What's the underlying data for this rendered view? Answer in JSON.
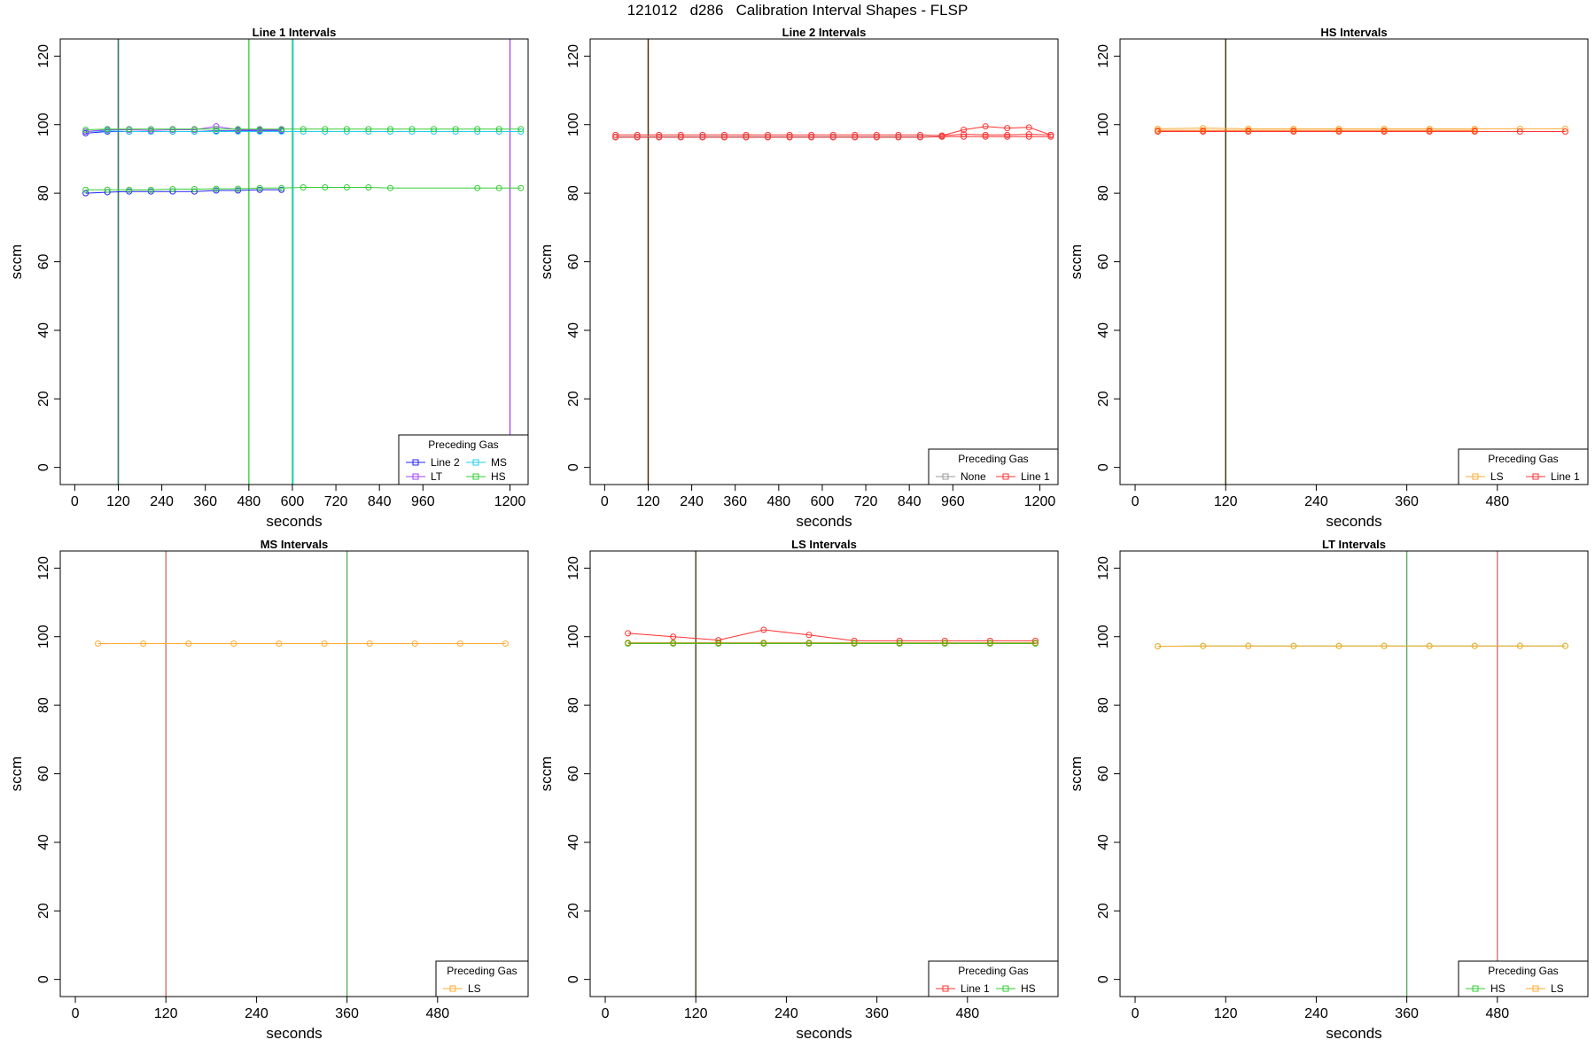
{
  "figure": {
    "title": "121012   d286   Calibration Interval Shapes - FLSP"
  },
  "chart_data": [
    {
      "type": "line",
      "title": "Line 1 Intervals",
      "xlabel": "seconds",
      "ylabel": "sccm",
      "xlim": [
        -40,
        1250
      ],
      "ylim": [
        -5,
        125
      ],
      "xticks": [
        0,
        120,
        240,
        360,
        480,
        600,
        720,
        840,
        960,
        1200
      ],
      "yticks": [
        0,
        20,
        40,
        60,
        80,
        100,
        120
      ],
      "legend": {
        "title": "Preceding Gas",
        "position": "bottom-right",
        "columns": 2
      },
      "vlines": [
        {
          "x": 120,
          "color": "#000000"
        },
        {
          "x": 120,
          "color": "#2f7f5f"
        },
        {
          "x": 480,
          "color": "#33cc33"
        },
        {
          "x": 600,
          "color": "#33cc33"
        },
        {
          "x": 602,
          "color": "#22ccee"
        },
        {
          "x": 1200,
          "color": "#a040ff"
        }
      ],
      "series": [
        {
          "name": "Line 2",
          "color": "#2222ff",
          "x": [
            30,
            90,
            150,
            210,
            270,
            330,
            390,
            450,
            510,
            570
          ],
          "y": [
            80.0,
            80.3,
            80.5,
            80.5,
            80.5,
            80.5,
            80.8,
            80.8,
            81.0,
            81.0
          ]
        },
        {
          "name": "",
          "color": "#2222ff",
          "x": [
            30,
            90,
            150,
            210,
            270,
            330,
            390,
            450,
            510,
            570
          ],
          "y": [
            97.5,
            98.0,
            98.0,
            98.0,
            98.0,
            98.0,
            98.2,
            98.2,
            98.2,
            98.2
          ]
        },
        {
          "name": "MS",
          "color": "#22ccee",
          "x": [
            30,
            90,
            150,
            210,
            270,
            330,
            390,
            450,
            510,
            570,
            630,
            690,
            750,
            810,
            870,
            930,
            990,
            1050,
            1110,
            1170,
            1230
          ],
          "y": [
            98.0,
            98.2,
            98.0,
            98.0,
            98.0,
            98.0,
            98.0,
            98.0,
            98.0,
            98.0,
            98.0,
            98.0,
            98.0,
            98.0,
            98.0,
            98.0,
            98.0,
            98.0,
            98.0,
            98.0,
            98.0
          ]
        },
        {
          "name": "LT",
          "color": "#a040ff",
          "x": [
            30,
            90,
            150,
            210,
            270,
            330,
            390,
            450,
            510,
            570
          ],
          "y": [
            98.0,
            98.5,
            98.5,
            98.3,
            98.5,
            98.5,
            99.5,
            98.5,
            98.5,
            98.5
          ]
        },
        {
          "name": "HS",
          "color": "#33cc33",
          "x": [
            30,
            90,
            150,
            210,
            270,
            330,
            390,
            450,
            510,
            570,
            630,
            690,
            750,
            810,
            870,
            1110,
            1170,
            1230
          ],
          "y": [
            81.0,
            81.0,
            81.0,
            81.0,
            81.2,
            81.2,
            81.3,
            81.3,
            81.5,
            81.5,
            81.7,
            81.7,
            81.7,
            81.7,
            81.5,
            81.5,
            81.5,
            81.5
          ]
        },
        {
          "name": "",
          "color": "#33cc33",
          "x": [
            30,
            90,
            150,
            210,
            270,
            330,
            390,
            450,
            510,
            570,
            630,
            690,
            750,
            810,
            870,
            930,
            990,
            1050,
            1110,
            1170,
            1230
          ],
          "y": [
            98.5,
            98.7,
            98.7,
            98.7,
            98.7,
            98.7,
            98.7,
            98.7,
            98.7,
            98.7,
            98.7,
            98.7,
            98.7,
            98.7,
            98.7,
            98.7,
            98.7,
            98.7,
            98.7,
            98.7,
            98.7
          ]
        }
      ]
    },
    {
      "type": "line",
      "title": "Line 2 Intervals",
      "xlabel": "seconds",
      "ylabel": "sccm",
      "xlim": [
        -40,
        1250
      ],
      "ylim": [
        -5,
        125
      ],
      "xticks": [
        0,
        120,
        240,
        360,
        480,
        600,
        720,
        840,
        960,
        1200
      ],
      "yticks": [
        0,
        20,
        40,
        60,
        80,
        100,
        120
      ],
      "legend": {
        "title": "Preceding Gas",
        "position": "bottom-right",
        "columns": 2
      },
      "vlines": [
        {
          "x": 120,
          "color": "#ff3333"
        },
        {
          "x": 120,
          "color": "#333300"
        }
      ],
      "series": [
        {
          "name": "None",
          "color": "#999999",
          "x": [
            30,
            90,
            150,
            210,
            270,
            330,
            390,
            450,
            510,
            570,
            630,
            690,
            750,
            810,
            870,
            930
          ],
          "y": [
            96.5,
            96.5,
            96.5,
            96.5,
            96.5,
            96.5,
            96.5,
            96.5,
            96.5,
            96.5,
            96.5,
            96.5,
            96.5,
            96.5,
            96.5,
            96.5
          ]
        },
        {
          "name": "Line 1",
          "color": "#ff3333",
          "x": [
            30,
            90,
            150,
            210,
            270,
            330,
            390,
            450,
            510,
            570,
            630,
            690,
            750,
            810,
            870,
            930,
            990,
            1050,
            1110,
            1170,
            1230
          ],
          "y": [
            97.0,
            97.0,
            97.0,
            97.0,
            97.0,
            97.0,
            97.0,
            97.0,
            97.0,
            97.0,
            97.0,
            97.0,
            97.0,
            97.0,
            97.0,
            96.8,
            98.5,
            99.5,
            99.0,
            99.2,
            97.0
          ]
        },
        {
          "name": "",
          "color": "#ff3333",
          "x": [
            30,
            90,
            150,
            210,
            270,
            330,
            390,
            450,
            510,
            570,
            630,
            690,
            750,
            810,
            870,
            930,
            990,
            1050,
            1110,
            1170,
            1230
          ],
          "y": [
            96.3,
            96.3,
            96.3,
            96.3,
            96.3,
            96.3,
            96.3,
            96.3,
            96.3,
            96.3,
            96.3,
            96.3,
            96.3,
            96.3,
            96.3,
            96.5,
            96.5,
            96.5,
            96.5,
            96.5,
            96.5
          ]
        },
        {
          "name": "",
          "color": "#ff3333",
          "x": [
            930,
            990,
            1050,
            1110,
            1170,
            1230
          ],
          "y": [
            96.8,
            97.2,
            97.0,
            97.0,
            97.2,
            97.0
          ]
        }
      ]
    },
    {
      "type": "line",
      "title": "HS Intervals",
      "xlabel": "seconds",
      "ylabel": "sccm",
      "xlim": [
        -20,
        600
      ],
      "ylim": [
        -5,
        125
      ],
      "xticks": [
        0,
        120,
        240,
        360,
        480
      ],
      "yticks": [
        0,
        20,
        40,
        60,
        80,
        100,
        120
      ],
      "legend": {
        "title": "Preceding Gas",
        "position": "bottom-right",
        "columns": 2
      },
      "vlines": [
        {
          "x": 120,
          "color": "#ffaa33"
        },
        {
          "x": 120,
          "color": "#2a2a00"
        }
      ],
      "series": [
        {
          "name": "LS",
          "color": "#ffaa33",
          "x": [
            30,
            90,
            150,
            210,
            270,
            330,
            390,
            450,
            510,
            570
          ],
          "y": [
            98.8,
            99.0,
            98.8,
            98.8,
            98.8,
            98.8,
            98.8,
            98.8,
            98.8,
            98.8
          ]
        },
        {
          "name": "Line 1",
          "color": "#ff3333",
          "x": [
            30,
            90,
            150,
            210,
            270,
            330,
            390,
            450,
            510,
            570
          ],
          "y": [
            98.0,
            98.0,
            98.0,
            98.0,
            98.0,
            98.0,
            98.0,
            98.0,
            98.0,
            98.0
          ]
        },
        {
          "name": "",
          "color": "#ff6600",
          "x": [
            30,
            90,
            150,
            210,
            270,
            330,
            390,
            450
          ],
          "y": [
            98.3,
            98.3,
            98.3,
            98.3,
            98.3,
            98.3,
            98.3,
            98.3
          ]
        }
      ]
    },
    {
      "type": "line",
      "title": "MS Intervals",
      "xlabel": "seconds",
      "ylabel": "sccm",
      "xlim": [
        -20,
        600
      ],
      "ylim": [
        -5,
        125
      ],
      "xticks": [
        0,
        120,
        240,
        360,
        480
      ],
      "yticks": [
        0,
        20,
        40,
        60,
        80,
        100,
        120
      ],
      "legend": {
        "title": "Preceding Gas",
        "position": "bottom-right",
        "columns": 1
      },
      "vlines": [
        {
          "x": 120,
          "color": "#cc6666"
        },
        {
          "x": 360,
          "color": "#55aa55"
        }
      ],
      "series": [
        {
          "name": "LS",
          "color": "#ffaa33",
          "x": [
            30,
            90,
            150,
            210,
            270,
            330,
            390,
            450,
            510,
            570
          ],
          "y": [
            98.0,
            98.0,
            98.0,
            98.0,
            98.0,
            98.0,
            98.0,
            98.0,
            98.0,
            98.0
          ]
        }
      ]
    },
    {
      "type": "line",
      "title": "LS Intervals",
      "xlabel": "seconds",
      "ylabel": "sccm",
      "xlim": [
        -20,
        600
      ],
      "ylim": [
        -5,
        125
      ],
      "xticks": [
        0,
        120,
        240,
        360,
        480
      ],
      "yticks": [
        0,
        20,
        40,
        60,
        80,
        100,
        120
      ],
      "legend": {
        "title": "Preceding Gas",
        "position": "bottom-right",
        "columns": 2
      },
      "vlines": [
        {
          "x": 120,
          "color": "#333300"
        }
      ],
      "series": [
        {
          "name": "Line 1",
          "color": "#ff3333",
          "x": [
            30,
            90,
            150,
            210,
            270,
            330,
            390,
            450,
            510,
            570
          ],
          "y": [
            101.0,
            100.0,
            99.0,
            102.0,
            100.5,
            98.8,
            98.8,
            98.8,
            98.8,
            98.8
          ]
        },
        {
          "name": "HS",
          "color": "#33cc33",
          "x": [
            30,
            90,
            150,
            210,
            270,
            330,
            390,
            450,
            510,
            570
          ],
          "y": [
            98.0,
            98.0,
            98.0,
            98.0,
            98.0,
            98.0,
            98.0,
            98.0,
            98.0,
            98.0
          ]
        },
        {
          "name": "",
          "color": "#aa8800",
          "x": [
            30,
            90,
            150,
            210,
            270,
            330,
            390,
            450,
            510,
            570
          ],
          "y": [
            98.2,
            98.2,
            98.2,
            98.2,
            98.2,
            98.2,
            98.2,
            98.2,
            98.2,
            98.2
          ]
        }
      ]
    },
    {
      "type": "line",
      "title": "LT Intervals",
      "xlabel": "seconds",
      "ylabel": "sccm",
      "xlim": [
        -20,
        600
      ],
      "ylim": [
        -5,
        125
      ],
      "xticks": [
        0,
        120,
        240,
        360,
        480
      ],
      "yticks": [
        0,
        20,
        40,
        60,
        80,
        100,
        120
      ],
      "legend": {
        "title": "Preceding Gas",
        "position": "bottom-right",
        "columns": 2
      },
      "vlines": [
        {
          "x": 360,
          "color": "#55aa55"
        },
        {
          "x": 480,
          "color": "#cc6666"
        }
      ],
      "series": [
        {
          "name": "HS",
          "color": "#33cc33",
          "x": [
            30,
            90,
            150,
            210,
            270,
            330,
            390,
            450,
            510,
            570
          ],
          "y": [
            97.2,
            97.3,
            97.3,
            97.3,
            97.3,
            97.3,
            97.3,
            97.3,
            97.3,
            97.3
          ]
        },
        {
          "name": "LS",
          "color": "#ffaa33",
          "x": [
            30,
            90,
            150,
            210,
            270,
            330,
            390,
            450,
            510,
            570
          ],
          "y": [
            97.2,
            97.3,
            97.3,
            97.3,
            97.3,
            97.3,
            97.3,
            97.3,
            97.3,
            97.3
          ]
        }
      ]
    }
  ]
}
